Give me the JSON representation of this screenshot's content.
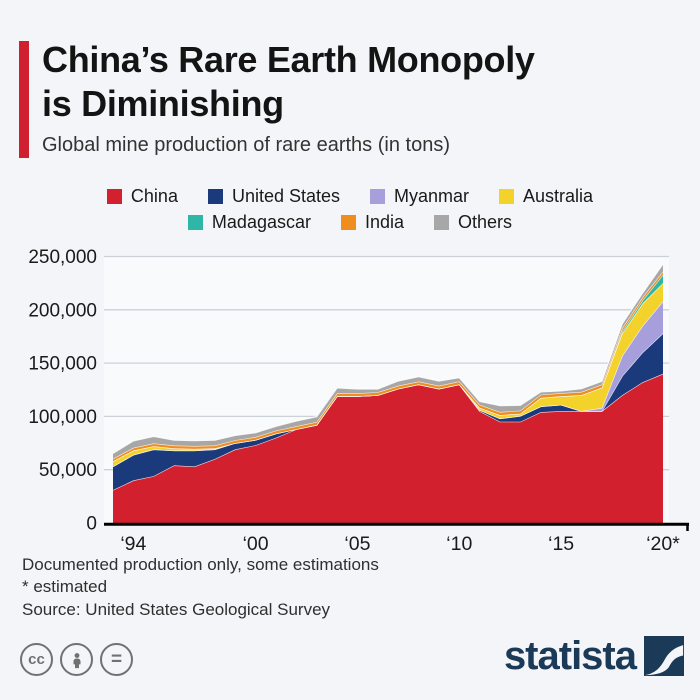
{
  "header": {
    "title_line1": "China’s Rare Earth Monopoly",
    "title_line2": "is Diminishing",
    "subtitle": "Global mine production of rare earths (in tons)",
    "accent_color": "#d0202f"
  },
  "legend": [
    {
      "label": "China",
      "color": "#d3202e"
    },
    {
      "label": "United States",
      "color": "#1a3a7c"
    },
    {
      "label": "Myanmar",
      "color": "#a79edc"
    },
    {
      "label": "Australia",
      "color": "#f4d22c"
    },
    {
      "label": "Madagascar",
      "color": "#2eb7a7"
    },
    {
      "label": "India",
      "color": "#ef8d1f"
    },
    {
      "label": "Others",
      "color": "#a7a7a8"
    }
  ],
  "chart_data": {
    "type": "area",
    "stacked": true,
    "title": "Global mine production of rare earths (in tons)",
    "xlabel": "",
    "ylabel": "",
    "grid": true,
    "legend_position": "top",
    "ylim": [
      0,
      250000
    ],
    "ytick_values": [
      0,
      50000,
      100000,
      150000,
      200000,
      250000
    ],
    "ytick_labels": [
      "0",
      "50,000",
      "100,000",
      "150,000",
      "200,000",
      "250,000"
    ],
    "xticks": [
      {
        "label": "‘94",
        "year": 1994
      },
      {
        "label": "‘00",
        "year": 2000
      },
      {
        "label": "‘05",
        "year": 2005
      },
      {
        "label": "‘10",
        "year": 2010
      },
      {
        "label": "‘15",
        "year": 2015
      },
      {
        "label": "‘20*",
        "year": 2020
      }
    ],
    "x": [
      1993,
      1994,
      1995,
      1996,
      1997,
      1998,
      1999,
      2000,
      2001,
      2002,
      2003,
      2004,
      2005,
      2006,
      2007,
      2008,
      2009,
      2010,
      2011,
      2012,
      2013,
      2014,
      2015,
      2016,
      2017,
      2018,
      2019,
      2020
    ],
    "series": [
      {
        "name": "China",
        "color": "#d3202e",
        "values": [
          31000,
          40000,
          44000,
          54000,
          53000,
          60000,
          69000,
          73000,
          80000,
          88000,
          92000,
          119000,
          119000,
          120000,
          126000,
          130000,
          126000,
          130000,
          105000,
          95000,
          95000,
          104000,
          105000,
          105000,
          105000,
          120000,
          132000,
          140000
        ]
      },
      {
        "name": "United States",
        "color": "#1a3a7c",
        "values": [
          22000,
          24000,
          25000,
          14000,
          15000,
          9000,
          6000,
          5000,
          4000,
          0,
          0,
          0,
          0,
          0,
          0,
          0,
          0,
          0,
          1000,
          3000,
          5500,
          5400,
          5900,
          0,
          0,
          18000,
          28000,
          38000
        ]
      },
      {
        "name": "Myanmar",
        "color": "#a79edc",
        "values": [
          0,
          0,
          0,
          0,
          0,
          0,
          0,
          0,
          0,
          0,
          0,
          0,
          0,
          0,
          0,
          0,
          0,
          0,
          0,
          0,
          0,
          0,
          0,
          0,
          3000,
          19000,
          25000,
          30000
        ]
      },
      {
        "name": "Australia",
        "color": "#f4d22c",
        "values": [
          5000,
          4000,
          3000,
          2000,
          1500,
          1000,
          0,
          0,
          0,
          0,
          0,
          0,
          0,
          0,
          0,
          0,
          0,
          0,
          2200,
          3200,
          2000,
          8000,
          8000,
          15000,
          19000,
          21000,
          21000,
          17000
        ]
      },
      {
        "name": "Madagascar",
        "color": "#2eb7a7",
        "values": [
          0,
          0,
          0,
          0,
          0,
          0,
          0,
          0,
          0,
          0,
          0,
          0,
          0,
          0,
          0,
          0,
          0,
          0,
          0,
          0,
          0,
          0,
          0,
          0,
          0,
          2000,
          2800,
          8000
        ]
      },
      {
        "name": "India",
        "color": "#ef8d1f",
        "values": [
          2300,
          2500,
          2700,
          2700,
          2700,
          2700,
          2700,
          2700,
          2700,
          2700,
          2700,
          2700,
          2700,
          2700,
          2700,
          2700,
          2700,
          2800,
          2800,
          2900,
          2900,
          3000,
          3000,
          3000,
          2900,
          2900,
          2900,
          3000
        ]
      },
      {
        "name": "Others",
        "color": "#a7a7a8",
        "values": [
          5000,
          6500,
          6500,
          5000,
          5000,
          5000,
          4500,
          4000,
          4000,
          5000,
          5000,
          5000,
          4000,
          3000,
          4500,
          4500,
          4500,
          3500,
          3000,
          5900,
          5000,
          2600,
          2000,
          3000,
          3000,
          4000,
          4000,
          7000
        ]
      }
    ]
  },
  "footer": {
    "note1": "Documented production only, some estimations",
    "note2": "* estimated",
    "source": "Source: United States Geological Survey"
  },
  "branding": {
    "logo_text": "statista",
    "logo_color": "#1b3a57",
    "license_icons": [
      "cc",
      "attribution",
      "equals"
    ]
  },
  "style_colors": {
    "background": "#f4f5f8",
    "plot_background": "#f9fafc",
    "gridline": "#ccd1d8",
    "axis": "#000000",
    "text": "#1a1a1a"
  }
}
